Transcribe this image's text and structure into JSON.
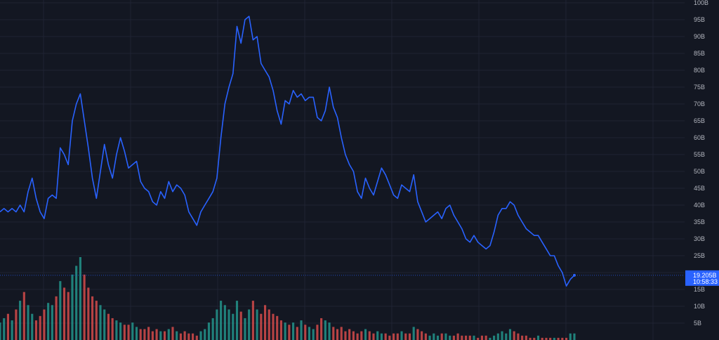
{
  "chart_data": {
    "type": "line",
    "ylim": [
      0,
      100
    ],
    "y_unit": "B",
    "y_ticks": [
      5,
      10,
      15,
      20,
      25,
      30,
      35,
      40,
      45,
      50,
      55,
      60,
      65,
      70,
      75,
      80,
      85,
      90,
      95,
      100
    ],
    "y_tick_labels": [
      "5B",
      "10B",
      "15B",
      "",
      "25B",
      "30B",
      "35B",
      "40B",
      "45B",
      "50B",
      "55B",
      "60B",
      "65B",
      "70B",
      "75B",
      "80B",
      "85B",
      "90B",
      "95B",
      "100B"
    ],
    "grid": true,
    "last_value_label": "19.205B",
    "last_time_label": "10:58:33",
    "series": [
      {
        "values": [
          38,
          39,
          38,
          39,
          38,
          40,
          38,
          44,
          48,
          42,
          38,
          36,
          42,
          43,
          42,
          57,
          55,
          52,
          65,
          70,
          73,
          65,
          57,
          48,
          42,
          50,
          58,
          52,
          48,
          55,
          60,
          56,
          51,
          52,
          53,
          47,
          45,
          44,
          41,
          40,
          44,
          42,
          47,
          44,
          46,
          45,
          43,
          38,
          36,
          34,
          38,
          40,
          42,
          44,
          48,
          60,
          70,
          75,
          79,
          93,
          88,
          95,
          96,
          89,
          90,
          82,
          80,
          78,
          74,
          68,
          64,
          71,
          70,
          74,
          72,
          73,
          71,
          72,
          72,
          66,
          65,
          68,
          75,
          69,
          66,
          60,
          55,
          52,
          50,
          44,
          42,
          48,
          45,
          43,
          47,
          51,
          49,
          46,
          43,
          42,
          46,
          45,
          44,
          49,
          41,
          38,
          35,
          36,
          37,
          38,
          36,
          39,
          40,
          37,
          35,
          33,
          30,
          29,
          31,
          29,
          28,
          27,
          28,
          32,
          37,
          39,
          39,
          41,
          40,
          37,
          35,
          33,
          32,
          31,
          31,
          29,
          27,
          25,
          25,
          22,
          20,
          16,
          18,
          19.2
        ],
        "volume": [
          8,
          10,
          12,
          9,
          14,
          18,
          22,
          16,
          12,
          9,
          11,
          14,
          17,
          16,
          20,
          27,
          24,
          22,
          30,
          34,
          38,
          30,
          24,
          20,
          18,
          16,
          14,
          12,
          10,
          9,
          8,
          7,
          7,
          8,
          6,
          5,
          5,
          6,
          4,
          5,
          4,
          4,
          5,
          6,
          4,
          3,
          4,
          3,
          3,
          2,
          4,
          5,
          8,
          10,
          14,
          18,
          16,
          14,
          12,
          18,
          13,
          10,
          14,
          18,
          14,
          12,
          16,
          14,
          12,
          11,
          9,
          8,
          7,
          8,
          6,
          9,
          7,
          6,
          5,
          7,
          10,
          9,
          8,
          6,
          5,
          6,
          4,
          5,
          4,
          3,
          4,
          5,
          4,
          3,
          4,
          3,
          3,
          2,
          3,
          3,
          4,
          3,
          3,
          6,
          5,
          4,
          3,
          2,
          3,
          2,
          3,
          3,
          2,
          2,
          3,
          2,
          2,
          2,
          2,
          1,
          2,
          2,
          1,
          2,
          3,
          4,
          3,
          5,
          4,
          3,
          2,
          2,
          1,
          1,
          2,
          1,
          1,
          1,
          1,
          1,
          1,
          1,
          3,
          3
        ]
      }
    ]
  },
  "colors": {
    "background": "#131722",
    "grid": "#1f2333",
    "line": "#2962ff",
    "volume_up": "#26a69a",
    "volume_down": "#ef5350",
    "tick_text": "#b2b5be",
    "price_tag": "#2962ff"
  }
}
